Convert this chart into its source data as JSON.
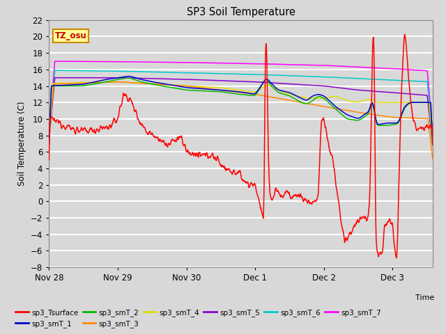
{
  "title": "SP3 Soil Temperature",
  "ylabel": "Soil Temperature (C)",
  "xlabel": "Time",
  "ylim": [
    -8,
    22
  ],
  "yticks": [
    -8,
    -6,
    -4,
    -2,
    0,
    2,
    4,
    6,
    8,
    10,
    12,
    14,
    16,
    18,
    20,
    22
  ],
  "background_color": "#d8d8d8",
  "plot_bg_color": "#d8d8d8",
  "grid_color": "#ffffff",
  "series_colors": {
    "sp3_Tsurface": "#ff0000",
    "sp3_smT_1": "#0000cc",
    "sp3_smT_2": "#00bb00",
    "sp3_smT_3": "#ff8800",
    "sp3_smT_4": "#dddd00",
    "sp3_smT_5": "#8800cc",
    "sp3_smT_6": "#00cccc",
    "sp3_smT_7": "#ff00ff"
  },
  "tz_label": "TZ_osu",
  "tz_bg": "#ffff99",
  "tz_border": "#cc8800",
  "x_tick_labels": [
    "Nov 28",
    "Nov 29",
    "Nov 30",
    "Dec 1",
    "Dec 2",
    "Dec 3"
  ],
  "x_tick_positions": [
    0,
    24,
    48,
    72,
    96,
    120
  ],
  "xlim": [
    0,
    134
  ]
}
